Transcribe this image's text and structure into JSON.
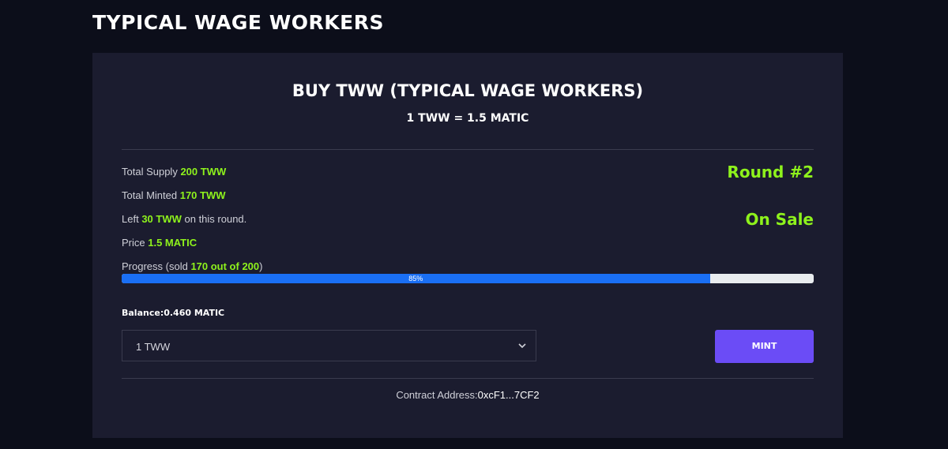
{
  "header": {
    "title": "TYPICAL WAGE WORKERS"
  },
  "card": {
    "title": "BUY TWW (TYPICAL WAGE WORKERS)",
    "rate": "1 TWW = 1.5 MATIC"
  },
  "stats": {
    "supply": {
      "label": "Total Supply",
      "value": "200 TWW"
    },
    "minted": {
      "label": "Total Minted",
      "value": "170 TWW"
    },
    "left": {
      "label": "Left",
      "value": "30 TWW",
      "suffix": "on this round."
    },
    "price": {
      "label": "Price",
      "value": "1.5 MATIC"
    },
    "progress": {
      "label": "Progress (sold",
      "value": "170 out of 200",
      "suffix": ")"
    }
  },
  "round": "Round #2",
  "status": "On Sale",
  "progress": {
    "percent": 85,
    "label": "85%"
  },
  "balance": "Balance:0.460 MATIC",
  "select": {
    "selected": "1 TWW"
  },
  "button": "MINT",
  "contract": {
    "label": "Contract Address:",
    "address": "0xcF1...7CF2"
  }
}
